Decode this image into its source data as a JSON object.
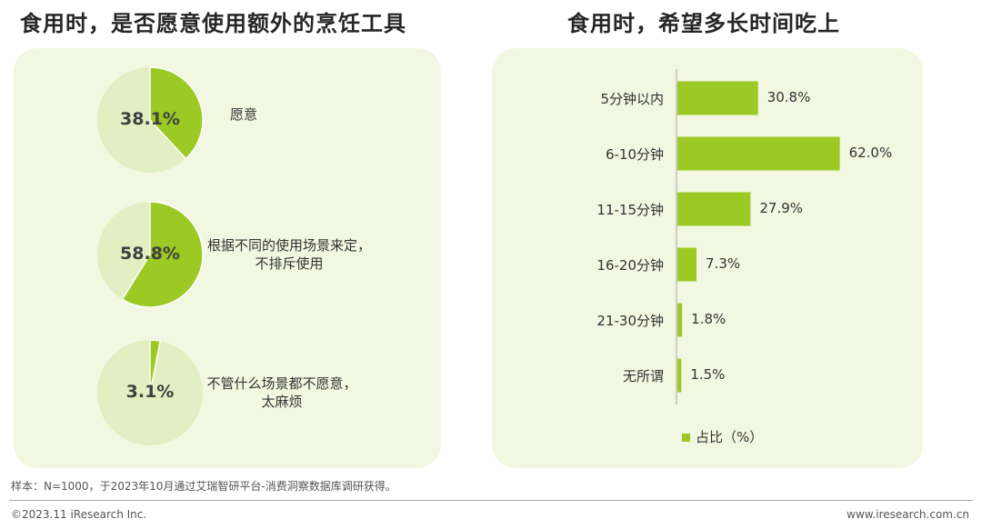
{
  "colors": {
    "accent": "#9cc924",
    "pie_rest": "#e2efc2",
    "panel_bg": "#f2f7e2"
  },
  "left": {
    "title": "食用时，是否愿意使用额外的烹饪工具",
    "pies": [
      {
        "value": 38.1,
        "label_pct": "38.1%",
        "label_lines": [
          "愿意"
        ]
      },
      {
        "value": 58.8,
        "label_pct": "58.8%",
        "label_lines": [
          "根据不同的使用场景来定，",
          "不排斥使用"
        ]
      },
      {
        "value": 3.1,
        "label_pct": "3.1%",
        "label_lines": [
          "不管什么场景都不愿意，",
          "太麻烦"
        ]
      }
    ]
  },
  "chart_data": {
    "type": "bar",
    "title": "食用时，希望多长时间吃上",
    "orientation": "horizontal",
    "categories": [
      "5分钟以内",
      "6-10分钟",
      "11-15分钟",
      "16-20分钟",
      "21-30分钟",
      "无所谓"
    ],
    "values": [
      30.8,
      62.0,
      27.9,
      7.3,
      1.8,
      1.5
    ],
    "value_labels": [
      "30.8%",
      "62.0%",
      "27.9%",
      "7.3%",
      "1.8%",
      "1.5%"
    ],
    "series": [
      {
        "name": "占比（%）",
        "values": [
          30.8,
          62.0,
          27.9,
          7.3,
          1.8,
          1.5
        ]
      }
    ],
    "xlim": [
      0,
      70
    ],
    "grid": false,
    "legend": "bottom"
  },
  "footer": {
    "footnote": "样本：N=1000，于2023年10月通过艾瑞智研平台-消费洞察数据库调研获得。",
    "copyright": "©2023.11 iResearch Inc.",
    "website": "www.iresearch.com.cn"
  }
}
